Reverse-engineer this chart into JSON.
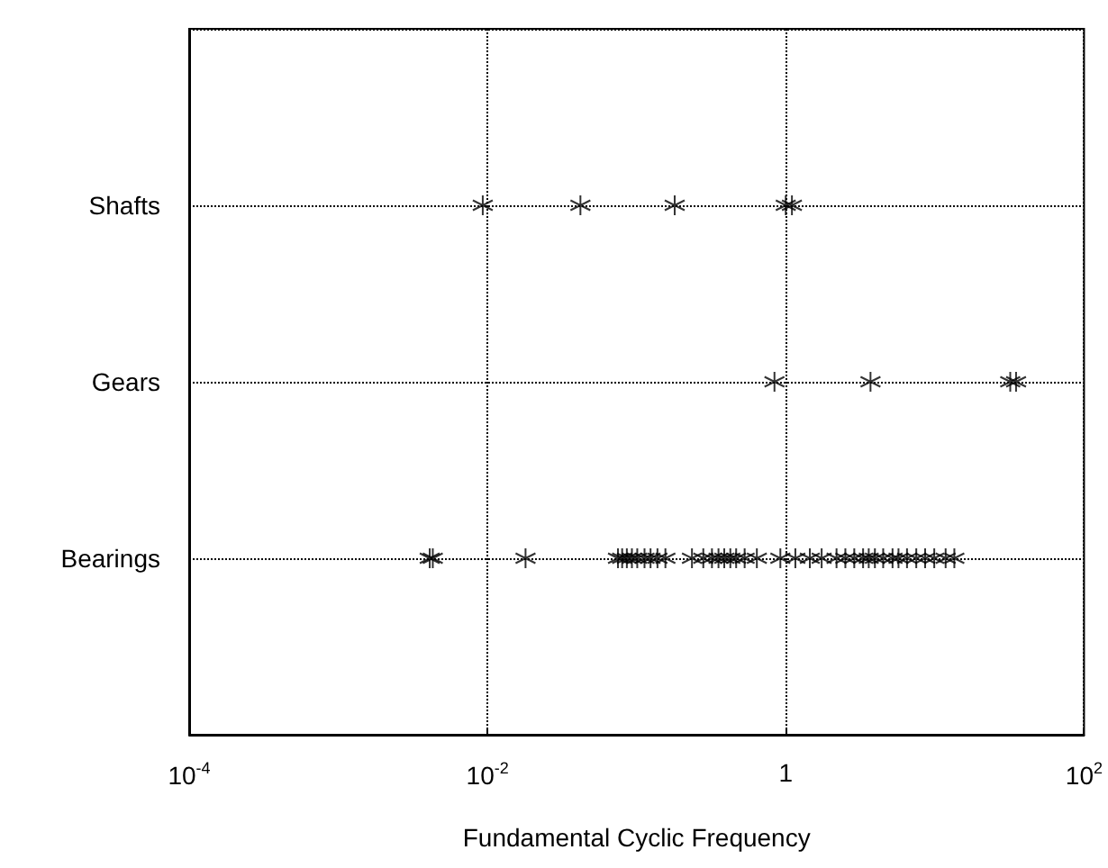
{
  "chart_data": {
    "type": "scatter",
    "orientation": "horizontal",
    "xlabel": "Fundamental Cyclic Frequency",
    "categories": [
      "Shafts",
      "Gears",
      "Bearings"
    ],
    "log": "x",
    "xlim": [
      0.0001,
      100
    ],
    "xticks": [
      {
        "value": 0.0001,
        "label": "10$^{-4}$"
      },
      {
        "value": 0.01,
        "label": "10$^{-2}$"
      },
      1,
      {
        "value": 100,
        "label": "10$^{2}$"
      }
    ],
    "grid": true,
    "marker": "cross",
    "series": [
      {
        "color": "#000000",
        "x": [
          "Shafts",
          "Shafts",
          "Shafts",
          "Shafts",
          "Shafts"
        ],
        "values": [
          0.0093,
          0.042,
          0.18,
          1.0,
          1.1
        ]
      },
      {
        "color": "#000000",
        "x": [
          "Gears",
          "Gears",
          "Gears",
          "Gears"
        ],
        "values": [
          0.84,
          3.7,
          32,
          35
        ]
      },
      {
        "color": "#000000",
        "x": [
          "Bearings",
          "Bearings",
          "Bearings",
          "Bearings",
          "Bearings",
          "Bearings",
          "Bearings",
          "Bearings",
          "Bearings",
          "Bearings",
          "Bearings",
          "Bearings",
          "Bearings",
          "Bearings",
          "Bearings",
          "Bearings",
          "Bearings",
          "Bearings",
          "Bearings",
          "Bearings",
          "Bearings",
          "Bearings",
          "Bearings",
          "Bearings",
          "Bearings",
          "Bearings",
          "Bearings",
          "Bearings",
          "Bearings",
          "Bearings",
          "Bearings",
          "Bearings",
          "Bearings",
          "Bearings",
          "Bearings",
          "Bearings",
          "Bearings",
          "Bearings",
          "Bearings",
          "Bearings"
        ],
        "values": [
          0.0041,
          0.0043,
          0.018,
          0.075,
          0.08,
          0.086,
          0.093,
          0.101,
          0.113,
          0.124,
          0.138,
          0.156,
          0.235,
          0.28,
          0.32,
          0.354,
          0.387,
          0.425,
          0.465,
          0.53,
          0.64,
          0.92,
          1.16,
          1.45,
          1.74,
          2.19,
          2.51,
          2.88,
          3.3,
          3.6,
          3.96,
          4.5,
          5.2,
          5.7,
          6.5,
          7.5,
          8.6,
          9.9,
          11.8,
          13.5
        ]
      }
    ]
  }
}
